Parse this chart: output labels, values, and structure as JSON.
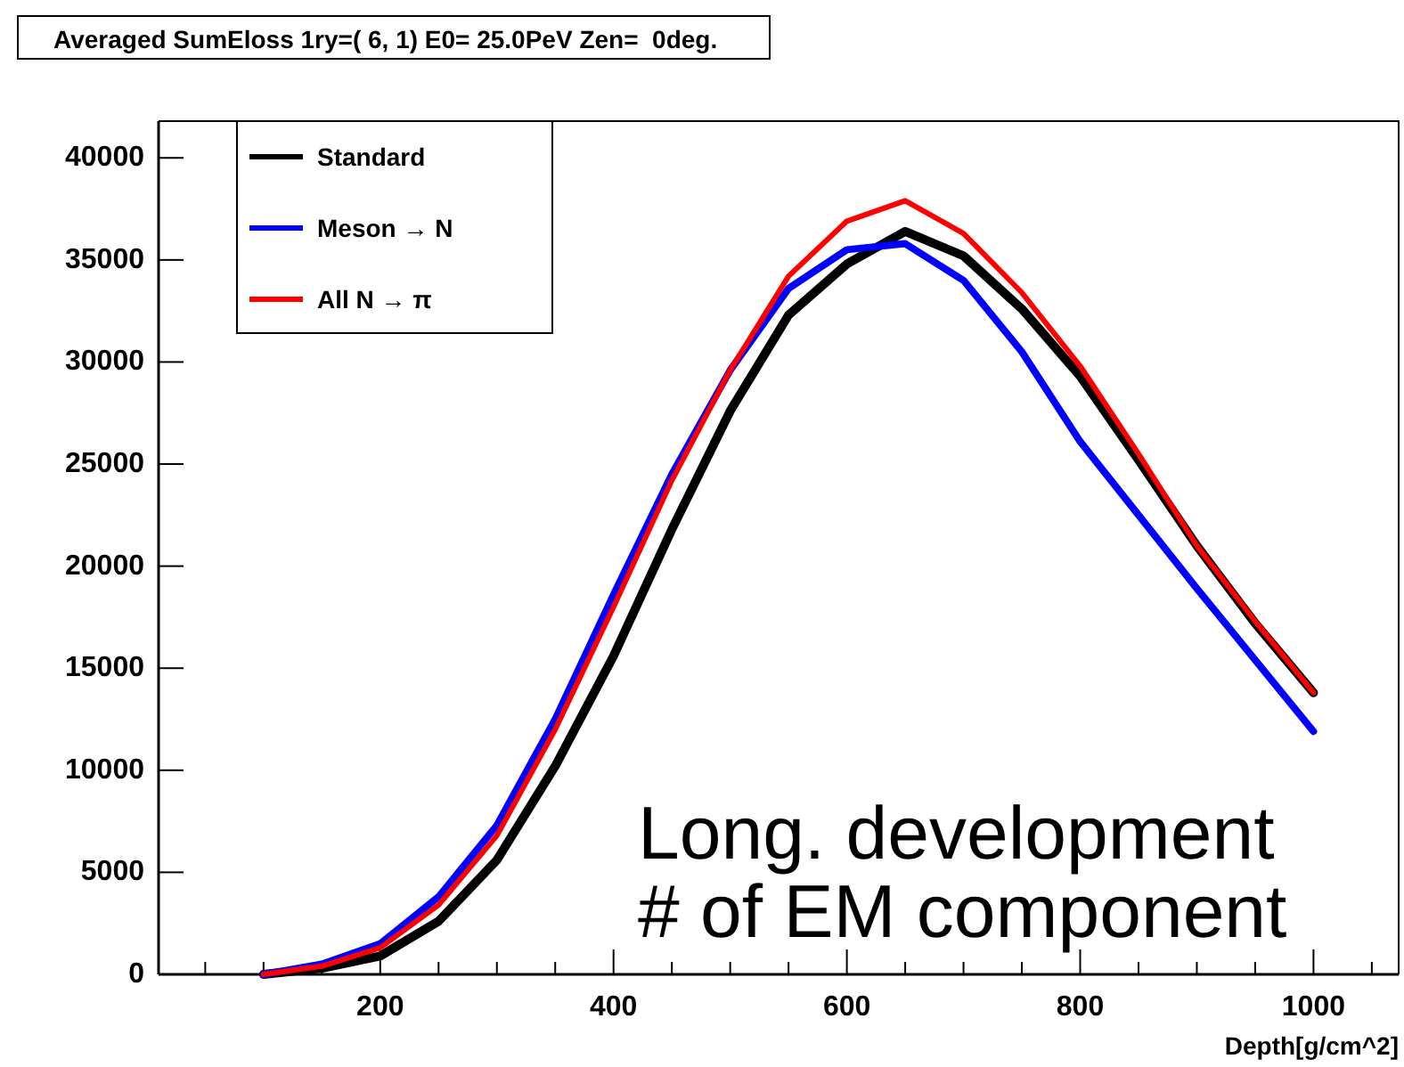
{
  "chart_data": {
    "type": "line",
    "title": "Averaged SumEloss 1ry=( 6, 1) E0= 25.0PeV Zen=  0deg.",
    "xlabel": "Depth[g/cm^2]",
    "x": [
      100,
      150,
      200,
      250,
      300,
      350,
      400,
      450,
      500,
      550,
      600,
      650,
      700,
      750,
      800,
      850,
      900,
      950,
      1000
    ],
    "series": [
      {
        "name": "Standard",
        "color": "#000000",
        "values": [
          0,
          300,
          900,
          2600,
          5600,
          10200,
          15600,
          21800,
          27600,
          32300,
          34800,
          36400,
          35200,
          32600,
          29300,
          25200,
          21000,
          17200,
          13800
        ]
      },
      {
        "name": "Meson → N",
        "color": "#0000ff",
        "values": [
          0,
          500,
          1500,
          3800,
          7300,
          12500,
          18600,
          24500,
          29600,
          33600,
          35500,
          35800,
          34000,
          30500,
          26100,
          22500,
          18900,
          15400,
          11900
        ]
      },
      {
        "name": "All N → π",
        "color": "#ff0000",
        "values": [
          0,
          400,
          1300,
          3400,
          6800,
          12000,
          18000,
          24200,
          29600,
          34200,
          36900,
          37900,
          36300,
          33400,
          29800,
          25500,
          21000,
          17300,
          13800
        ]
      }
    ],
    "xlim": [
      10,
      1073
    ],
    "ylim": [
      0,
      41800
    ],
    "xticks": [
      {
        "value": 50,
        "label": null
      },
      {
        "value": 100,
        "label": null
      },
      {
        "value": 150,
        "label": null
      },
      200,
      {
        "value": 250,
        "label": null
      },
      {
        "value": 300,
        "label": null
      },
      {
        "value": 350,
        "label": null
      },
      400,
      {
        "value": 450,
        "label": null
      },
      {
        "value": 500,
        "label": null
      },
      {
        "value": 550,
        "label": null
      },
      600,
      {
        "value": 650,
        "label": null
      },
      {
        "value": 700,
        "label": null
      },
      {
        "value": 750,
        "label": null
      },
      800,
      {
        "value": 850,
        "label": null
      },
      {
        "value": 900,
        "label": null
      },
      {
        "value": 950,
        "label": null
      },
      1000,
      {
        "value": 1050,
        "label": null
      }
    ],
    "yticks": [
      0,
      5000,
      10000,
      15000,
      20000,
      25000,
      30000,
      35000,
      40000
    ],
    "annotations": [
      "Long. development",
      "# of EM component"
    ],
    "legend": "top left",
    "grid": false,
    "marker": "none",
    "line_style": "solid"
  }
}
